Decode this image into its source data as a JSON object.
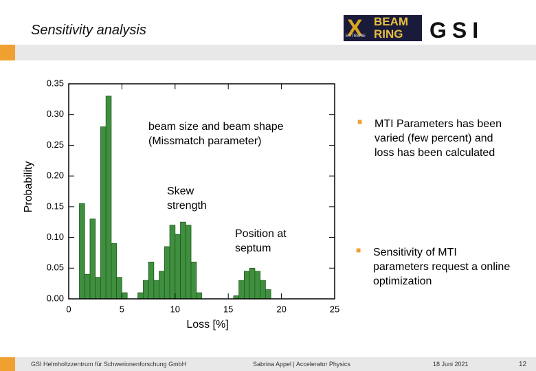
{
  "slide": {
    "title": "Sensitivity analysis",
    "logo_x": "X",
    "logo_beam": "BEAM",
    "logo_ring": "RING",
    "logo_extreme": "EXTREME",
    "logo_gsi": "GSI",
    "bullets": [
      "MTI Parameters has been varied (few percent) and loss has been calculated",
      "Sensitivity of MTI parameters request a online optimization"
    ],
    "footer_org": "GSI Helmholtzzentrum für Schwerionenforschung GmbH",
    "footer_author": "Sabrina Appel | Accelerator Physics",
    "footer_date": "18 Juni 2021",
    "page_number": "12"
  },
  "chart_data": {
    "type": "histogram",
    "x_label": "Loss [%]",
    "y_label": "Probability",
    "color": "#3f8f3f",
    "bins": [
      1.0,
      1.5,
      2.0,
      2.5,
      3.0,
      3.5,
      4.0,
      4.5,
      5.0,
      5.5,
      6.0,
      6.5,
      7.0,
      7.5,
      8.0,
      8.5,
      9.0,
      9.5,
      10.0,
      10.5,
      11.0,
      11.5,
      12.0,
      12.5,
      13.0,
      13.5,
      14.0,
      14.5,
      15.0,
      15.5,
      16.0,
      16.5,
      17.0,
      17.5,
      18.0,
      18.5,
      19.0
    ],
    "values": [
      0.155,
      0.04,
      0.13,
      0.035,
      0.28,
      0.33,
      0.09,
      0.035,
      0.01,
      0,
      0,
      0.01,
      0.03,
      0.06,
      0.03,
      0.045,
      0.085,
      0.12,
      0.105,
      0.125,
      0.12,
      0.06,
      0.01,
      0,
      0,
      0,
      0,
      0,
      0,
      0.005,
      0.03,
      0.045,
      0.05,
      0.045,
      0.03,
      0.015
    ],
    "xlim": [
      0,
      25
    ],
    "xticks": [
      0,
      5,
      10,
      15,
      20,
      25
    ],
    "ylim": [
      0,
      0.35
    ],
    "yticks": [
      {
        "value": 0,
        "label": "0.00"
      },
      0.05,
      {
        "value": 0.1,
        "label": "0.10"
      },
      0.15,
      {
        "value": 0.2,
        "label": "0.20"
      },
      0.25,
      {
        "value": 0.3,
        "label": "0.30"
      },
      0.35
    ],
    "annotations": [
      "beam size and beam shape (Missmatch parameter)",
      "Skew strength",
      "Position at septum"
    ]
  }
}
